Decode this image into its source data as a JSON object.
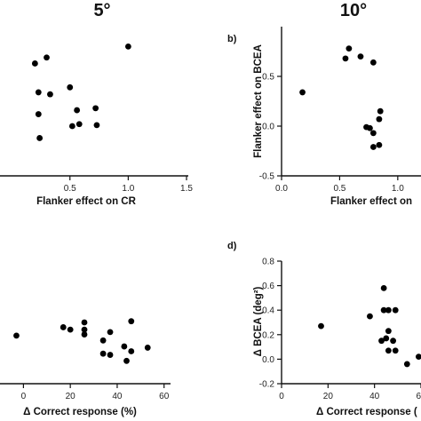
{
  "headers": {
    "left": "5°",
    "right": "10°"
  },
  "chart_data": [
    {
      "panel": "a",
      "type": "scatter",
      "letter": "",
      "xlabel": "Flanker effect on CR",
      "ylabel": "",
      "xlim": [
        -0.1,
        1.5
      ],
      "ylim": [
        -0.55,
        0.95
      ],
      "xticks": [
        "0.5",
        "1.0",
        "1.5"
      ],
      "yticks": [],
      "points": [
        {
          "x": 0.2,
          "y": 0.58
        },
        {
          "x": 0.3,
          "y": 0.64
        },
        {
          "x": 1.0,
          "y": 0.75
        },
        {
          "x": 0.23,
          "y": 0.29
        },
        {
          "x": 0.33,
          "y": 0.27
        },
        {
          "x": 0.5,
          "y": 0.34
        },
        {
          "x": 0.56,
          "y": 0.11
        },
        {
          "x": 0.72,
          "y": 0.13
        },
        {
          "x": 0.23,
          "y": 0.07
        },
        {
          "x": 0.58,
          "y": -0.03
        },
        {
          "x": 0.52,
          "y": -0.05
        },
        {
          "x": 0.73,
          "y": -0.04
        },
        {
          "x": 0.24,
          "y": -0.17
        }
      ]
    },
    {
      "panel": "b",
      "type": "scatter",
      "letter": "b)",
      "xlabel": "Flanker effect on",
      "ylabel": "Flanker effect on BCEA",
      "xlim": [
        0.0,
        1.2
      ],
      "ylim": [
        -0.5,
        1.0
      ],
      "xticks": [
        "0.0",
        "0.5",
        "1.0"
      ],
      "yticks": [
        "0.5",
        "0.0",
        "-0.5"
      ],
      "points": [
        {
          "x": 0.18,
          "y": 0.34
        },
        {
          "x": 0.58,
          "y": 0.78
        },
        {
          "x": 0.68,
          "y": 0.7
        },
        {
          "x": 0.55,
          "y": 0.68
        },
        {
          "x": 0.79,
          "y": 0.64
        },
        {
          "x": 0.85,
          "y": 0.15
        },
        {
          "x": 0.84,
          "y": 0.07
        },
        {
          "x": 0.73,
          "y": -0.01
        },
        {
          "x": 0.76,
          "y": -0.02
        },
        {
          "x": 0.79,
          "y": -0.07
        },
        {
          "x": 0.84,
          "y": -0.19
        },
        {
          "x": 0.79,
          "y": -0.21
        }
      ]
    },
    {
      "panel": "c",
      "type": "scatter",
      "letter": "",
      "xlabel": "Δ Correct response (%)",
      "ylabel": "",
      "xlim": [
        -10,
        62
      ],
      "ylim": [
        -0.05,
        1.0
      ],
      "xticks": [
        "0",
        "20",
        "40",
        "60"
      ],
      "yticks": [],
      "points": [
        {
          "x": -3,
          "y": 0.35
        },
        {
          "x": 17,
          "y": 0.42
        },
        {
          "x": 20,
          "y": 0.4
        },
        {
          "x": 26,
          "y": 0.4
        },
        {
          "x": 26,
          "y": 0.46
        },
        {
          "x": 26,
          "y": 0.36
        },
        {
          "x": 34,
          "y": 0.31
        },
        {
          "x": 37,
          "y": 0.38
        },
        {
          "x": 34,
          "y": 0.2
        },
        {
          "x": 37,
          "y": 0.19
        },
        {
          "x": 43,
          "y": 0.26
        },
        {
          "x": 44,
          "y": 0.14
        },
        {
          "x": 46,
          "y": 0.22
        },
        {
          "x": 46,
          "y": 0.47
        },
        {
          "x": 53,
          "y": 0.25
        }
      ]
    },
    {
      "panel": "d",
      "type": "scatter",
      "letter": "d)",
      "xlabel": "Δ Correct response (",
      "ylabel": "Δ BCEA (deg²)",
      "xlim": [
        0,
        60
      ],
      "ylim": [
        -0.2,
        0.8
      ],
      "xticks": [
        "0",
        "20",
        "40",
        "60"
      ],
      "yticks": [
        "0.8",
        "0.6",
        "0.4",
        "0.2",
        "0.0",
        "-0.2"
      ],
      "points": [
        {
          "x": 17,
          "y": 0.27
        },
        {
          "x": 38,
          "y": 0.35
        },
        {
          "x": 44,
          "y": 0.58
        },
        {
          "x": 44,
          "y": 0.4
        },
        {
          "x": 46,
          "y": 0.4
        },
        {
          "x": 49,
          "y": 0.4
        },
        {
          "x": 46,
          "y": 0.23
        },
        {
          "x": 45,
          "y": 0.17
        },
        {
          "x": 48,
          "y": 0.15
        },
        {
          "x": 43,
          "y": 0.15
        },
        {
          "x": 46,
          "y": 0.07
        },
        {
          "x": 49,
          "y": 0.07
        },
        {
          "x": 54,
          "y": -0.04
        },
        {
          "x": 59,
          "y": 0.02
        }
      ]
    }
  ]
}
